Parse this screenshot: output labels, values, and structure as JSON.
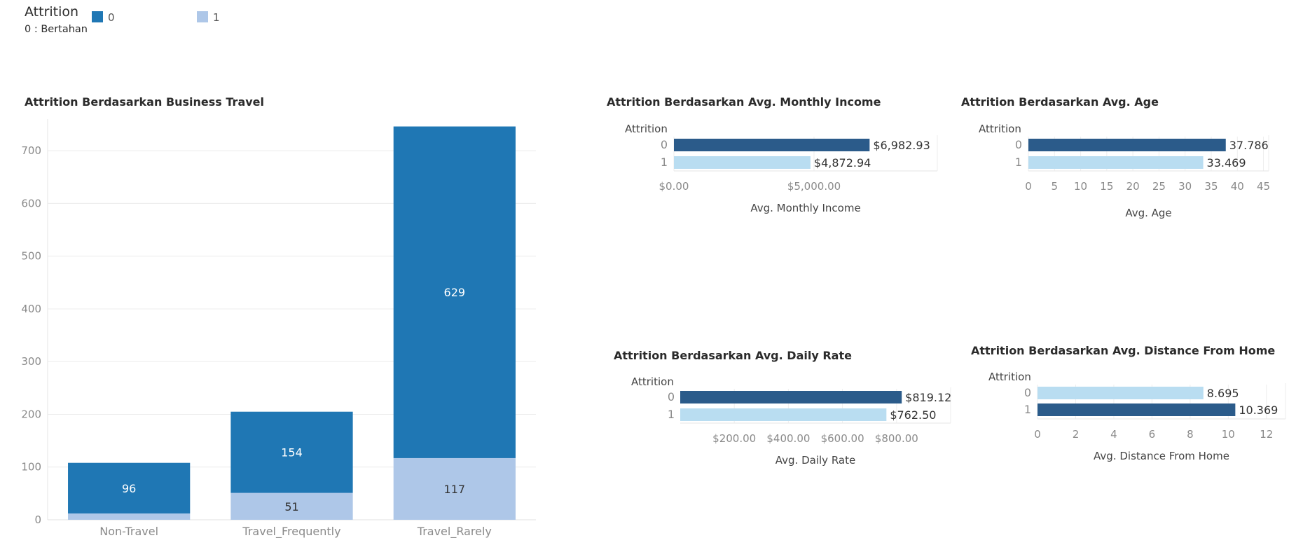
{
  "legend": {
    "title": "Attrition",
    "note": "0 : Bertahan",
    "items": [
      {
        "label": "0",
        "color": "#1f77b4"
      },
      {
        "label": "1",
        "color": "#aec7e8"
      }
    ]
  },
  "chart_data": [
    {
      "id": "business_travel",
      "type": "bar",
      "stacked": true,
      "title": "Attrition Berdasarkan Business Travel",
      "xlabel": "",
      "ylabel": "",
      "categories": [
        "Non-Travel",
        "Travel_Frequently",
        "Travel_Rarely"
      ],
      "series": [
        {
          "name": "1",
          "values": [
            12,
            51,
            117
          ],
          "labels": [
            "",
            "51",
            "117"
          ],
          "color": "#aec7e8"
        },
        {
          "name": "0",
          "values": [
            96,
            154,
            629
          ],
          "labels": [
            "96",
            "154",
            "629"
          ],
          "color": "#1f77b4"
        }
      ],
      "ylim": [
        0,
        760
      ],
      "yticks": [
        0,
        100,
        200,
        300,
        400,
        500,
        600,
        700
      ],
      "grid": true
    },
    {
      "id": "monthly_income",
      "type": "bar",
      "orientation": "horizontal",
      "title": "Attrition Berdasarkan Avg. Monthly Income",
      "category_title": "Attrition",
      "categories": [
        "0",
        "1"
      ],
      "values": [
        6982.93,
        4872.94
      ],
      "value_labels": [
        "$6,982.93",
        "$4,872.94"
      ],
      "colors": [
        "#2b5b8a",
        "#b9ddf1"
      ],
      "xlabel": "Avg. Monthly Income",
      "xlim": [
        0,
        9400
      ],
      "xticks": [
        0,
        5000
      ],
      "xtick_labels": [
        "$0.00",
        "$5,000.00"
      ]
    },
    {
      "id": "age",
      "type": "bar",
      "orientation": "horizontal",
      "title": "Attrition Berdasarkan Avg. Age",
      "category_title": "Attrition",
      "categories": [
        "0",
        "1"
      ],
      "values": [
        37.786,
        33.469
      ],
      "value_labels": [
        "37.786",
        "33.469"
      ],
      "colors": [
        "#2b5b8a",
        "#b9ddf1"
      ],
      "xlabel": "Avg. Age",
      "xlim": [
        0,
        46
      ],
      "xticks": [
        0,
        5,
        10,
        15,
        20,
        25,
        30,
        35,
        40,
        45
      ],
      "xtick_labels": [
        "0",
        "5",
        "10",
        "15",
        "20",
        "25",
        "30",
        "35",
        "40",
        "45"
      ]
    },
    {
      "id": "daily_rate",
      "type": "bar",
      "orientation": "horizontal",
      "title": "Attrition Berdasarkan Avg. Daily Rate",
      "category_title": "Attrition",
      "categories": [
        "0",
        "1"
      ],
      "values": [
        819.12,
        762.5
      ],
      "value_labels": [
        "$819.12",
        "$762.50"
      ],
      "colors": [
        "#2b5b8a",
        "#b9ddf1"
      ],
      "xlabel": "Avg. Daily Rate",
      "xlim": [
        0,
        1000
      ],
      "xticks": [
        200,
        400,
        600,
        800
      ],
      "xtick_labels": [
        "$200.00",
        "$400.00",
        "$600.00",
        "$800.00"
      ]
    },
    {
      "id": "distance_from_home",
      "type": "bar",
      "orientation": "horizontal",
      "title": "Attrition Berdasarkan Avg. Distance From Home",
      "category_title": "Attrition",
      "categories": [
        "0",
        "1"
      ],
      "values": [
        8.695,
        10.369
      ],
      "value_labels": [
        "8.695",
        "10.369"
      ],
      "colors": [
        "#b9ddf1",
        "#2b5b8a"
      ],
      "xlabel": "Avg. Distance From Home",
      "xlim": [
        0,
        13
      ],
      "xticks": [
        0,
        2,
        4,
        6,
        8,
        10,
        12
      ],
      "xtick_labels": [
        "0",
        "2",
        "4",
        "6",
        "8",
        "10",
        "12"
      ]
    }
  ]
}
